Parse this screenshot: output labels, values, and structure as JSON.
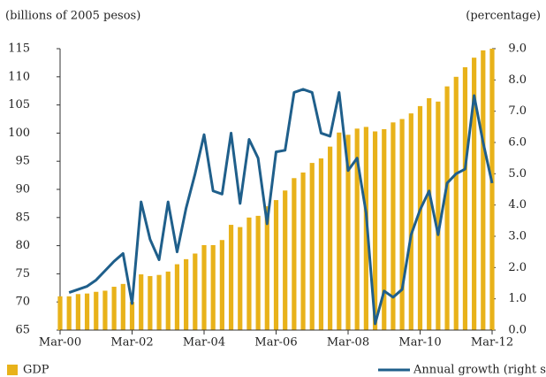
{
  "chart_data": {
    "type": "bar",
    "y_label": "(billions of 2005 pesos)",
    "y2_label": "(percentage)",
    "categories": [
      "Mar-00",
      null,
      null,
      null,
      null,
      null,
      null,
      null,
      "Mar-02",
      null,
      null,
      null,
      null,
      null,
      null,
      null,
      "Mar-04",
      null,
      null,
      null,
      null,
      null,
      null,
      null,
      "Mar-06",
      null,
      null,
      null,
      null,
      null,
      null,
      null,
      "Mar-08",
      null,
      null,
      null,
      null,
      null,
      null,
      null,
      "Mar-10",
      null,
      null,
      null,
      null,
      null,
      null,
      null,
      "Mar-12"
    ],
    "series": [
      {
        "name": "GDP",
        "type": "bar",
        "color": "#e8b21a",
        "values": [
          71.0,
          71.0,
          71.4,
          71.5,
          71.8,
          72.0,
          72.7,
          73.2,
          70.0,
          74.9,
          74.6,
          74.8,
          75.4,
          76.7,
          77.6,
          78.6,
          80.1,
          80.1,
          81.0,
          83.7,
          83.3,
          85.0,
          85.3,
          87.0,
          88.1,
          89.8,
          92.0,
          93.0,
          94.7,
          95.5,
          97.6,
          100.1,
          99.7,
          100.8,
          101.1,
          100.3,
          100.7,
          101.9,
          102.5,
          103.5,
          104.8,
          106.2,
          105.6,
          108.3,
          110.0,
          111.7,
          113.4,
          114.7,
          115.0
        ]
      },
      {
        "name": "Annual growth (right scale)",
        "type": "line",
        "axis": "y2",
        "color": "#1f5f8b",
        "values": [
          null,
          1.2,
          1.3,
          1.4,
          1.6,
          1.9,
          2.2,
          2.45,
          0.85,
          4.1,
          2.9,
          2.25,
          4.1,
          2.5,
          3.9,
          5.0,
          6.25,
          4.45,
          4.35,
          6.3,
          4.05,
          6.1,
          5.5,
          3.4,
          5.7,
          5.75,
          7.6,
          7.7,
          7.6,
          6.3,
          6.2,
          7.6,
          5.1,
          5.5,
          3.75,
          0.2,
          1.25,
          1.05,
          1.3,
          3.05,
          3.85,
          4.45,
          3.05,
          4.7,
          5.0,
          5.15,
          7.5,
          6.0,
          4.7
        ]
      }
    ],
    "ylim": [
      65,
      115
    ],
    "yticks": [
      65,
      70,
      75,
      80,
      85,
      90,
      95,
      100,
      105,
      110,
      115
    ],
    "y2lim": [
      0,
      9
    ],
    "y2ticks": [
      {
        "value": 0,
        "label": "0.0"
      },
      {
        "value": 1,
        "label": "1.0"
      },
      {
        "value": 2,
        "label": "2.0"
      },
      {
        "value": 3,
        "label": "3.0"
      },
      {
        "value": 4,
        "label": "4.0"
      },
      {
        "value": 5,
        "label": "5.0"
      },
      {
        "value": 6,
        "label": "6.0"
      },
      {
        "value": 7,
        "label": "7.0"
      },
      {
        "value": 8,
        "label": "8.0"
      },
      {
        "value": 9,
        "label": "9.0"
      }
    ],
    "grid": false
  }
}
